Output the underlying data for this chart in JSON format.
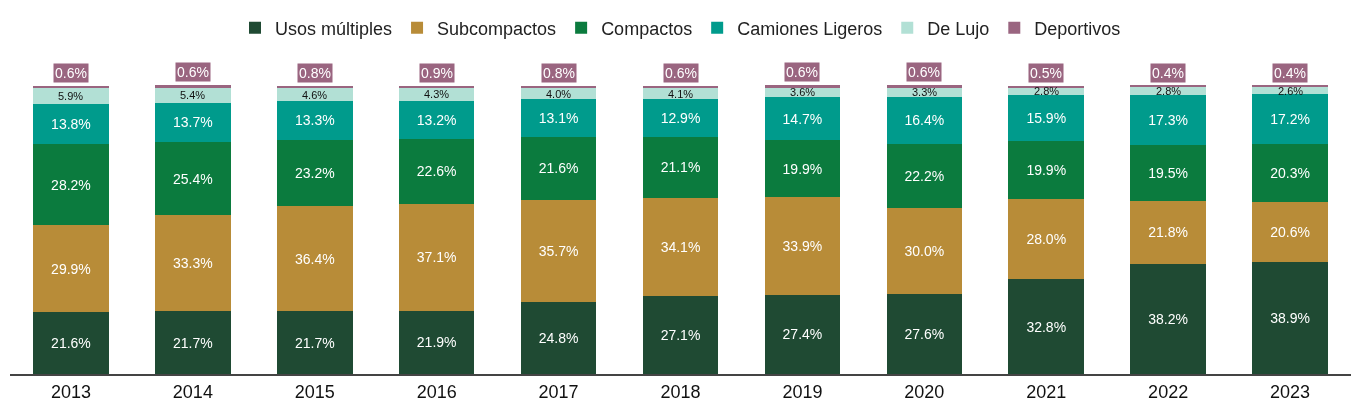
{
  "chart_data": {
    "type": "bar",
    "stacked": true,
    "legend": "top",
    "categories": [
      "2013",
      "2014",
      "2015",
      "2016",
      "2017",
      "2018",
      "2019",
      "2020",
      "2021",
      "2022",
      "2023"
    ],
    "series": [
      {
        "name": "Usos múltiples",
        "color": "#1f4a33",
        "values": [
          21.6,
          21.7,
          21.7,
          21.9,
          24.8,
          27.1,
          27.4,
          27.6,
          32.8,
          38.2,
          38.9
        ],
        "value_labels": [
          "21.6%",
          "21.7%",
          "21.7%",
          "21.9%",
          "24.8%",
          "27.1%",
          "27.4%",
          "27.6%",
          "32.8%",
          "38.2%",
          "38.9%"
        ]
      },
      {
        "name": "Subcompactos",
        "color": "#b88c38",
        "values": [
          29.9,
          33.3,
          36.4,
          37.1,
          35.7,
          34.1,
          33.9,
          30.0,
          28.0,
          21.8,
          20.6
        ],
        "value_labels": [
          "29.9%",
          "33.3%",
          "36.4%",
          "37.1%",
          "35.7%",
          "34.1%",
          "33.9%",
          "30.0%",
          "28.0%",
          "21.8%",
          "20.6%"
        ]
      },
      {
        "name": "Compactos",
        "color": "#0b7b3e",
        "values": [
          28.2,
          25.4,
          23.2,
          22.6,
          21.6,
          21.1,
          19.9,
          22.2,
          19.9,
          19.5,
          20.3
        ],
        "value_labels": [
          "28.2%",
          "25.4%",
          "23.2%",
          "22.6%",
          "21.6%",
          "21.1%",
          "19.9%",
          "22.2%",
          "19.9%",
          "19.5%",
          "20.3%"
        ]
      },
      {
        "name": "Camiones Ligeros",
        "color": "#009b8c",
        "values": [
          13.8,
          13.7,
          13.3,
          13.2,
          13.1,
          12.9,
          14.7,
          16.4,
          15.9,
          17.3,
          17.2
        ],
        "value_labels": [
          "13.8%",
          "13.7%",
          "13.3%",
          "13.2%",
          "13.1%",
          "12.9%",
          "14.7%",
          "16.4%",
          "15.9%",
          "17.3%",
          "17.2%"
        ]
      },
      {
        "name": "De Lujo",
        "color": "#b2e0d5",
        "values": [
          5.9,
          5.4,
          4.6,
          4.3,
          4.0,
          4.1,
          3.6,
          3.3,
          2.8,
          2.8,
          2.6
        ],
        "value_labels": [
          "5.9%",
          "5.4%",
          "4.6%",
          "4.3%",
          "4.0%",
          "4.1%",
          "3.6%",
          "3.3%",
          "2.8%",
          "2.8%",
          "2.6%"
        ]
      },
      {
        "name": "Deportivos",
        "color": "#9a6580",
        "values": [
          0.6,
          0.6,
          0.8,
          0.9,
          0.8,
          0.6,
          0.6,
          0.6,
          0.5,
          0.4,
          0.4
        ],
        "value_labels": [
          "0.6%",
          "0.6%",
          "0.8%",
          "0.9%",
          "0.8%",
          "0.6%",
          "0.6%",
          "0.6%",
          "0.5%",
          "0.4%",
          "0.4%"
        ]
      }
    ]
  }
}
